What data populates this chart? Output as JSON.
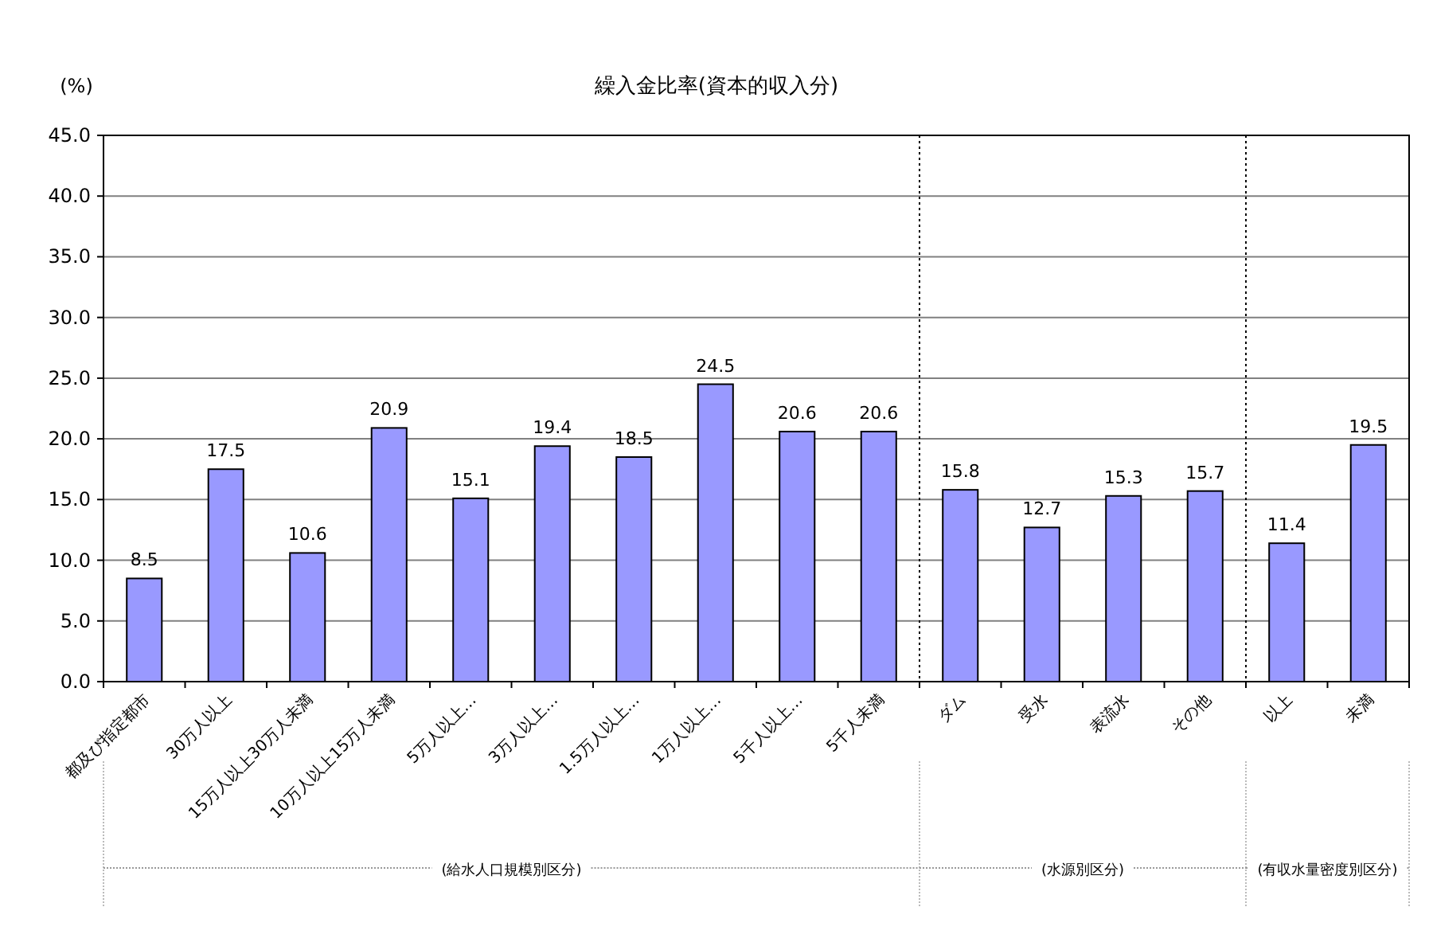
{
  "chart_data": {
    "type": "bar",
    "title": "繰入金比率(資本的収入分)",
    "ylabel": "(%)",
    "categories": [
      "都及び指定都市",
      "30万人以上",
      "15万人以上30万人未満",
      "10万人以上15万人未満",
      "5万人以上…",
      "3万人以上…",
      "1.5万人以上…",
      "1万人以上…",
      "5千人以上…",
      "5千人未満",
      "ダム",
      "受水",
      "表流水",
      "その他",
      "以上",
      "未満"
    ],
    "values": [
      8.5,
      17.5,
      10.6,
      20.9,
      15.1,
      19.4,
      18.5,
      24.5,
      20.6,
      20.6,
      15.8,
      12.7,
      15.3,
      15.7,
      11.4,
      19.5
    ],
    "color": "#9999ff",
    "data_labels": true,
    "grid": "y",
    "ylim": [
      0,
      45
    ],
    "yticks": [
      {
        "value": 0,
        "label": "0.0"
      },
      {
        "value": 5,
        "label": "5.0"
      },
      {
        "value": 10,
        "label": "10.0"
      },
      {
        "value": 15,
        "label": "15.0"
      },
      {
        "value": 20,
        "label": "20.0"
      },
      {
        "value": 25,
        "label": "25.0"
      },
      {
        "value": 30,
        "label": "30.0"
      },
      {
        "value": 35,
        "label": "35.0"
      },
      {
        "value": 40,
        "label": "40.0"
      },
      {
        "value": 45,
        "label": "45.0"
      }
    ],
    "annotations": [
      "(給水人口規模別区分)",
      "(水源別区分)",
      "(有収水量密度別区分)"
    ]
  }
}
